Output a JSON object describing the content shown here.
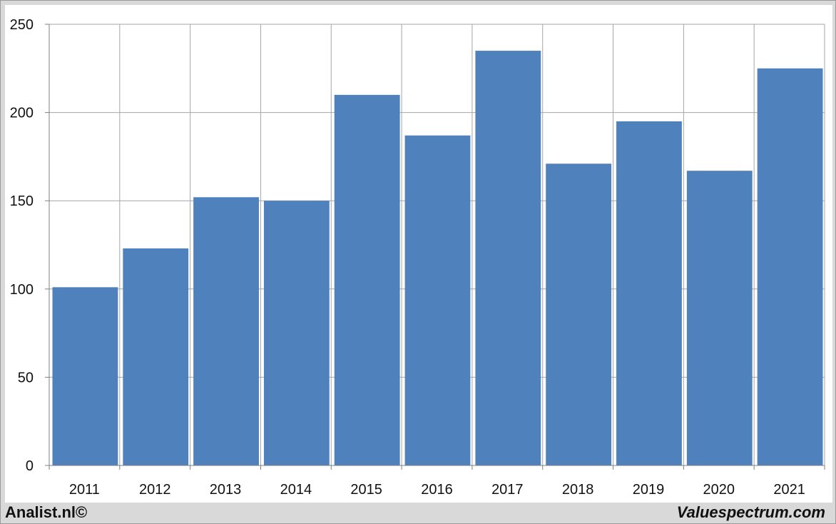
{
  "chart_data": {
    "type": "bar",
    "title": "",
    "xlabel": "",
    "ylabel": "",
    "categories": [
      "2011",
      "2012",
      "2013",
      "2014",
      "2015",
      "2016",
      "2017",
      "2018",
      "2019",
      "2020",
      "2021"
    ],
    "values": [
      101,
      123,
      152,
      150,
      210,
      187,
      235,
      171,
      195,
      167,
      225
    ],
    "ylim": [
      0,
      250
    ],
    "yticks": [
      0,
      50,
      100,
      150,
      200,
      250
    ],
    "grid": true,
    "bar_color": "#4f81bd"
  },
  "footer": {
    "left": "Analist.nl©",
    "right": "Valuespectrum.com"
  }
}
